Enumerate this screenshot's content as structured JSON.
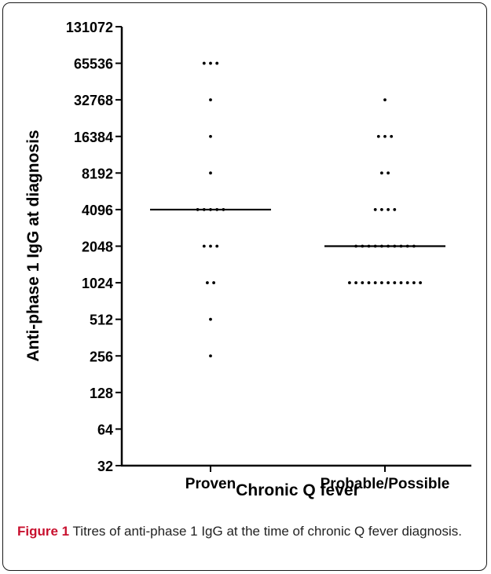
{
  "chart_data": {
    "type": "scatter",
    "xlabel": "Chronic Q fever",
    "ylabel": "Anti-phase 1 IgG at diagnosis",
    "y_scale": "log2",
    "ylim": [
      32,
      131072
    ],
    "yticks": [
      "32",
      "64",
      "128",
      "256",
      "512",
      "1024",
      "2048",
      "4096",
      "8192",
      "16384",
      "32768",
      "65536",
      "131072"
    ],
    "categories": [
      "Proven",
      "Probable/Possible"
    ],
    "groups": [
      {
        "category": "Proven",
        "points": [
          {
            "y": 65536,
            "n": 3
          },
          {
            "y": 32768,
            "n": 1
          },
          {
            "y": 16384,
            "n": 1
          },
          {
            "y": 8192,
            "n": 1
          },
          {
            "y": 4096,
            "n": 5
          },
          {
            "y": 2048,
            "n": 3
          },
          {
            "y": 1024,
            "n": 2
          },
          {
            "y": 512,
            "n": 1
          },
          {
            "y": 256,
            "n": 1
          }
        ],
        "median": 4096
      },
      {
        "category": "Probable/Possible",
        "points": [
          {
            "y": 32768,
            "n": 1
          },
          {
            "y": 16384,
            "n": 3
          },
          {
            "y": 8192,
            "n": 2
          },
          {
            "y": 4096,
            "n": 4
          },
          {
            "y": 2048,
            "n": 10
          },
          {
            "y": 1024,
            "n": 12
          }
        ],
        "median": 2048
      }
    ]
  },
  "caption": {
    "label": "Figure 1",
    "text": "Titres of anti-phase 1 IgG at the time of chronic Q fever diagnosis."
  }
}
